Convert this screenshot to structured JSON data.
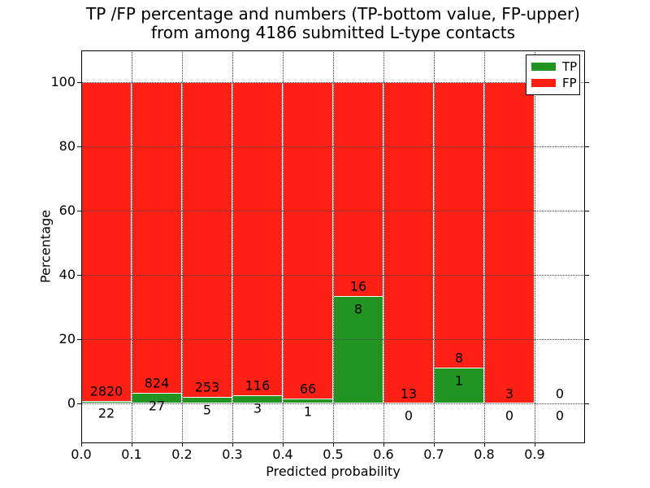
{
  "title": {
    "line1": "TP /FP percentage and numbers (TP-bottom value, FP-upper)",
    "line2": "from among 4186 submitted L-type contacts"
  },
  "axes": {
    "xlabel": "Predicted probability",
    "ylabel": "Percentage",
    "xticks": [
      "0.0",
      "0.1",
      "0.2",
      "0.3",
      "0.4",
      "0.5",
      "0.6",
      "0.7",
      "0.8",
      "0.9"
    ],
    "yticks": [
      "0",
      "20",
      "40",
      "60",
      "80",
      "100"
    ],
    "xlim": [
      0.0,
      1.0
    ],
    "ylim": [
      -12.5,
      110
    ],
    "grid": "dotted, drawn above bars"
  },
  "legend": {
    "position": "upper-right",
    "items": [
      {
        "label": "TP",
        "color": "#229422"
      },
      {
        "label": "FP",
        "color": "#ff2015"
      }
    ]
  },
  "chart_data": {
    "type": "bar",
    "subtype": "stacked-100-percent-histogram",
    "title": "TP /FP percentage and numbers (TP-bottom value, FP-upper) from among 4186 submitted L-type contacts",
    "xlabel": "Predicted probability",
    "ylabel": "Percentage",
    "total_contacts": 4186,
    "bin_width": 0.1,
    "colors": {
      "tp": "#229422",
      "fp": "#ff2015",
      "bar_edge": "#ffffff"
    },
    "bins": [
      {
        "range": [
          0.0,
          0.1
        ],
        "tp": 22,
        "fp": 2820,
        "tp_pct": 0.77
      },
      {
        "range": [
          0.1,
          0.2
        ],
        "tp": 27,
        "fp": 824,
        "tp_pct": 3.17
      },
      {
        "range": [
          0.2,
          0.3
        ],
        "tp": 5,
        "fp": 253,
        "tp_pct": 1.94
      },
      {
        "range": [
          0.3,
          0.4
        ],
        "tp": 3,
        "fp": 116,
        "tp_pct": 2.52
      },
      {
        "range": [
          0.4,
          0.5
        ],
        "tp": 1,
        "fp": 66,
        "tp_pct": 1.49
      },
      {
        "range": [
          0.5,
          0.6
        ],
        "tp": 8,
        "fp": 16,
        "tp_pct": 33.33
      },
      {
        "range": [
          0.6,
          0.7
        ],
        "tp": 0,
        "fp": 13,
        "tp_pct": 0
      },
      {
        "range": [
          0.7,
          0.8
        ],
        "tp": 1,
        "fp": 8,
        "tp_pct": 11.11
      },
      {
        "range": [
          0.8,
          0.9
        ],
        "tp": 0,
        "fp": 3,
        "tp_pct": 0
      },
      {
        "range": [
          0.9,
          1.0
        ],
        "tp": 0,
        "fp": 0,
        "tp_pct": 0,
        "empty": true
      }
    ]
  }
}
